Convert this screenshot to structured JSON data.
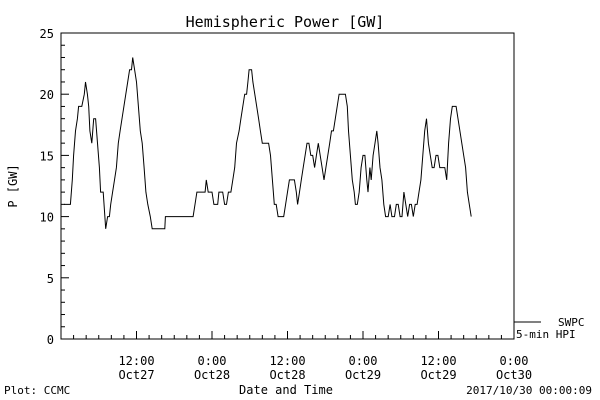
{
  "footer": {
    "left": "Plot: CCMC",
    "right": "2017/10/30 00:00:09"
  },
  "chart_data": {
    "type": "line",
    "title": "Hemispheric Power [GW]",
    "xlabel": "Date and Time",
    "ylabel": "P [GW]",
    "ylim": [
      0,
      25
    ],
    "yticks": [
      0,
      5,
      10,
      15,
      20,
      25
    ],
    "xlim_hours": [
      0,
      72
    ],
    "xticks": [
      {
        "hour": 12,
        "line1": "12:00",
        "line2": "Oct27"
      },
      {
        "hour": 24,
        "line1": "0:00",
        "line2": "Oct28"
      },
      {
        "hour": 36,
        "line1": "12:00",
        "line2": "Oct28"
      },
      {
        "hour": 48,
        "line1": "0:00",
        "line2": "Oct29"
      },
      {
        "hour": 60,
        "line1": "12:00",
        "line2": "Oct29"
      },
      {
        "hour": 72,
        "line1": "0:00",
        "line2": "Oct30"
      }
    ],
    "grid": false,
    "legend": {
      "placement": "bottom-right",
      "entries": [
        "SWPC",
        "5-min HPI"
      ]
    },
    "series": [
      {
        "name": "SWPC",
        "color": "#000000",
        "points": [
          [
            0.5,
            11
          ],
          [
            1.5,
            11
          ],
          [
            1.8,
            13
          ],
          [
            2.0,
            15
          ],
          [
            2.3,
            17
          ],
          [
            2.6,
            18
          ],
          [
            2.8,
            19
          ],
          [
            3.3,
            19
          ],
          [
            3.7,
            20
          ],
          [
            3.9,
            21
          ],
          [
            4.2,
            20
          ],
          [
            4.4,
            19
          ],
          [
            4.6,
            17
          ],
          [
            4.9,
            16
          ],
          [
            5.2,
            18
          ],
          [
            5.5,
            18
          ],
          [
            5.8,
            16
          ],
          [
            6.1,
            14
          ],
          [
            6.3,
            12
          ],
          [
            6.7,
            12
          ],
          [
            7.1,
            9
          ],
          [
            7.4,
            10
          ],
          [
            7.7,
            10
          ],
          [
            7.9,
            11
          ],
          [
            8.2,
            12
          ],
          [
            8.5,
            13
          ],
          [
            8.8,
            14
          ],
          [
            9.1,
            16
          ],
          [
            9.4,
            17
          ],
          [
            9.7,
            18
          ],
          [
            10.0,
            19
          ],
          [
            10.3,
            20
          ],
          [
            10.6,
            21
          ],
          [
            10.9,
            22
          ],
          [
            11.2,
            22
          ],
          [
            11.4,
            23
          ],
          [
            11.7,
            22
          ],
          [
            12.0,
            21
          ],
          [
            12.3,
            19
          ],
          [
            12.6,
            17
          ],
          [
            12.9,
            16
          ],
          [
            13.2,
            14
          ],
          [
            13.5,
            12
          ],
          [
            13.8,
            11
          ],
          [
            14.2,
            10
          ],
          [
            14.5,
            9
          ],
          [
            16.5,
            9
          ],
          [
            16.6,
            10
          ],
          [
            21.0,
            10
          ],
          [
            21.3,
            11
          ],
          [
            21.6,
            12
          ],
          [
            22.9,
            12
          ],
          [
            23.1,
            13
          ],
          [
            23.4,
            12
          ],
          [
            24.0,
            12
          ],
          [
            24.3,
            11
          ],
          [
            24.9,
            11
          ],
          [
            25.1,
            12
          ],
          [
            25.7,
            12
          ],
          [
            26.0,
            11
          ],
          [
            26.3,
            11
          ],
          [
            26.6,
            12
          ],
          [
            27.0,
            12
          ],
          [
            27.3,
            13
          ],
          [
            27.6,
            14
          ],
          [
            27.9,
            16
          ],
          [
            28.3,
            17
          ],
          [
            28.6,
            18
          ],
          [
            28.9,
            19
          ],
          [
            29.2,
            20
          ],
          [
            29.5,
            20
          ],
          [
            29.7,
            21
          ],
          [
            29.9,
            22
          ],
          [
            30.3,
            22
          ],
          [
            30.5,
            21
          ],
          [
            30.8,
            20
          ],
          [
            31.1,
            19
          ],
          [
            31.4,
            18
          ],
          [
            31.7,
            17
          ],
          [
            32.0,
            16
          ],
          [
            33.0,
            16
          ],
          [
            33.3,
            15
          ],
          [
            33.6,
            13
          ],
          [
            33.9,
            11
          ],
          [
            34.2,
            11
          ],
          [
            34.5,
            10
          ],
          [
            35.4,
            10
          ],
          [
            35.7,
            11
          ],
          [
            36.0,
            12
          ],
          [
            36.3,
            13
          ],
          [
            37.1,
            13
          ],
          [
            37.4,
            12
          ],
          [
            37.6,
            11
          ],
          [
            37.9,
            12
          ],
          [
            38.2,
            13
          ],
          [
            38.5,
            14
          ],
          [
            38.8,
            15
          ],
          [
            39.1,
            16
          ],
          [
            39.4,
            16
          ],
          [
            39.7,
            15
          ],
          [
            40.0,
            15
          ],
          [
            40.3,
            14
          ],
          [
            40.6,
            15
          ],
          [
            40.9,
            16
          ],
          [
            41.2,
            15
          ],
          [
            41.5,
            14
          ],
          [
            41.8,
            13
          ],
          [
            42.1,
            14
          ],
          [
            42.4,
            15
          ],
          [
            42.7,
            16
          ],
          [
            43.0,
            17
          ],
          [
            43.3,
            17
          ],
          [
            43.6,
            18
          ],
          [
            43.9,
            19
          ],
          [
            44.2,
            20
          ],
          [
            45.2,
            20
          ],
          [
            45.5,
            19
          ],
          [
            45.7,
            17
          ],
          [
            46.0,
            15
          ],
          [
            46.3,
            13
          ],
          [
            46.6,
            12
          ],
          [
            46.8,
            11
          ],
          [
            47.1,
            11
          ],
          [
            47.4,
            12
          ],
          [
            47.7,
            14
          ],
          [
            48.0,
            15
          ],
          [
            48.3,
            15
          ],
          [
            48.6,
            13
          ],
          [
            48.8,
            12
          ],
          [
            49.1,
            14
          ],
          [
            49.3,
            13
          ],
          [
            49.6,
            15
          ],
          [
            49.9,
            16
          ],
          [
            50.2,
            17
          ],
          [
            50.4,
            16
          ],
          [
            50.7,
            14
          ],
          [
            51.0,
            13
          ],
          [
            51.3,
            11
          ],
          [
            51.6,
            10
          ],
          [
            52.0,
            10
          ],
          [
            52.3,
            11
          ],
          [
            52.6,
            10
          ],
          [
            53.0,
            10
          ],
          [
            53.3,
            11
          ],
          [
            53.6,
            11
          ],
          [
            53.9,
            10
          ],
          [
            54.2,
            10
          ],
          [
            54.5,
            12
          ],
          [
            54.8,
            11
          ],
          [
            55.1,
            10
          ],
          [
            55.4,
            11
          ],
          [
            55.7,
            11
          ],
          [
            56.0,
            10
          ],
          [
            56.3,
            11
          ],
          [
            56.6,
            11
          ],
          [
            56.9,
            12
          ],
          [
            57.2,
            13
          ],
          [
            57.5,
            15
          ],
          [
            57.8,
            17
          ],
          [
            58.1,
            18
          ],
          [
            58.4,
            16
          ],
          [
            58.7,
            15
          ],
          [
            59.0,
            14
          ],
          [
            59.3,
            14
          ],
          [
            59.6,
            15
          ],
          [
            59.9,
            15
          ],
          [
            60.2,
            14
          ],
          [
            60.5,
            14
          ],
          [
            61.0,
            14
          ],
          [
            61.3,
            13
          ],
          [
            61.6,
            16
          ],
          [
            61.9,
            18
          ],
          [
            62.2,
            19
          ],
          [
            62.8,
            19
          ],
          [
            63.1,
            18
          ],
          [
            63.4,
            17
          ],
          [
            63.7,
            16
          ],
          [
            64.0,
            15
          ],
          [
            64.3,
            14
          ],
          [
            64.6,
            12
          ],
          [
            64.9,
            11
          ],
          [
            65.2,
            10
          ]
        ]
      }
    ]
  }
}
